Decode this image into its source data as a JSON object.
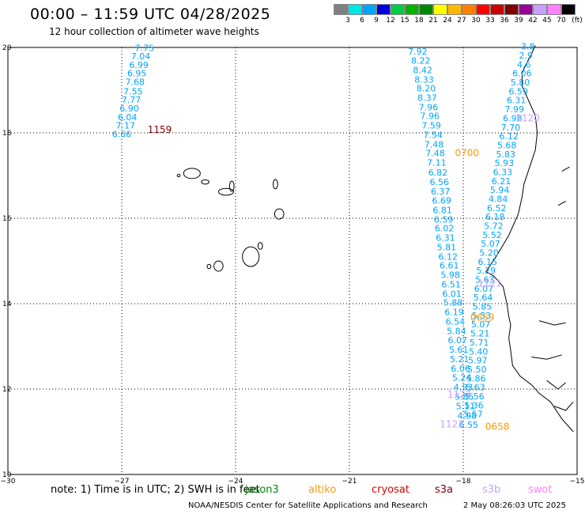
{
  "title": "00:00 – 11:59 UTC 04/28/2025",
  "subtitle": "12 hour collection of altimeter wave heights",
  "scale": {
    "unit": "(ft)",
    "colors": [
      "#808080",
      "#00e5e5",
      "#00a5ff",
      "#0000dd",
      "#00cc44",
      "#00b200",
      "#008800",
      "#ffff00",
      "#ffb800",
      "#ff8000",
      "#ff0000",
      "#cc0000",
      "#800000",
      "#990099",
      "#c8a0ff",
      "#ff80ff",
      "#000000"
    ],
    "labels": [
      "3",
      "6",
      "9",
      "12",
      "15",
      "18",
      "21",
      "24",
      "27",
      "30",
      "33",
      "36",
      "39",
      "42",
      "45",
      "70"
    ]
  },
  "axes": {
    "x_ticks": [
      {
        "lon": -30,
        "label": "−30"
      },
      {
        "lon": -27,
        "label": "−27"
      },
      {
        "lon": -24,
        "label": "−24"
      },
      {
        "lon": -21,
        "label": "−21"
      },
      {
        "lon": -18,
        "label": "−18"
      },
      {
        "lon": -15,
        "label": "−15"
      }
    ],
    "y_ticks": [
      {
        "lat": 10,
        "label": "10"
      },
      {
        "lat": 12,
        "label": "12"
      },
      {
        "lat": 14,
        "label": "14"
      },
      {
        "lat": 16,
        "label": "16"
      },
      {
        "lat": 18,
        "label": "18"
      },
      {
        "lat": 20,
        "label": "20"
      }
    ],
    "lon_range": [
      -30,
      -15
    ],
    "lat_range": [
      10,
      20
    ]
  },
  "tracks": [
    {
      "color": "#00a5ff",
      "points": [
        {
          "lon": -26.4,
          "lat": 19.92,
          "v": "7.75"
        },
        {
          "lon": -26.5,
          "lat": 19.72,
          "v": "7.04"
        },
        {
          "lon": -26.55,
          "lat": 19.52,
          "v": "6.99"
        },
        {
          "lon": -26.6,
          "lat": 19.32,
          "v": "6.95"
        },
        {
          "lon": -26.65,
          "lat": 19.12,
          "v": "7.68"
        },
        {
          "lon": -26.7,
          "lat": 18.9,
          "v": "7.55"
        },
        {
          "lon": -26.75,
          "lat": 18.7,
          "v": "7.77"
        },
        {
          "lon": -26.8,
          "lat": 18.5,
          "v": "6.90"
        },
        {
          "lon": -26.85,
          "lat": 18.3,
          "v": "6.04"
        },
        {
          "lon": -26.9,
          "lat": 18.1,
          "v": "7.17"
        },
        {
          "lon": -27.0,
          "lat": 17.9,
          "v": "6.66"
        }
      ]
    },
    {
      "color": "#00a5ff",
      "points": [
        {
          "lon": -19.2,
          "lat": 19.83,
          "v": "7.92"
        },
        {
          "lon": -19.12,
          "lat": 19.62,
          "v": "8.22"
        },
        {
          "lon": -19.07,
          "lat": 19.4,
          "v": "8.42"
        },
        {
          "lon": -19.03,
          "lat": 19.18,
          "v": "8.33"
        },
        {
          "lon": -18.98,
          "lat": 18.97,
          "v": "8.20"
        },
        {
          "lon": -18.95,
          "lat": 18.75,
          "v": "8.37"
        },
        {
          "lon": -18.92,
          "lat": 18.53,
          "v": "7.96"
        },
        {
          "lon": -18.88,
          "lat": 18.32,
          "v": "7.96"
        },
        {
          "lon": -18.84,
          "lat": 18.1,
          "v": "7.59"
        },
        {
          "lon": -18.8,
          "lat": 17.88,
          "v": "7.54"
        },
        {
          "lon": -18.77,
          "lat": 17.66,
          "v": "7.48"
        },
        {
          "lon": -18.74,
          "lat": 17.45,
          "v": "7.48"
        },
        {
          "lon": -18.7,
          "lat": 17.23,
          "v": "7.11"
        },
        {
          "lon": -18.67,
          "lat": 17.0,
          "v": "6.82"
        },
        {
          "lon": -18.63,
          "lat": 16.78,
          "v": "6.56"
        },
        {
          "lon": -18.6,
          "lat": 16.56,
          "v": "6.37"
        },
        {
          "lon": -18.57,
          "lat": 16.34,
          "v": "6.69"
        },
        {
          "lon": -18.55,
          "lat": 16.12,
          "v": "6.81"
        },
        {
          "lon": -18.52,
          "lat": 15.9,
          "v": "6.59"
        },
        {
          "lon": -18.5,
          "lat": 15.69,
          "v": "6.02"
        },
        {
          "lon": -18.47,
          "lat": 15.47,
          "v": "6.31"
        },
        {
          "lon": -18.44,
          "lat": 15.25,
          "v": "5.81"
        },
        {
          "lon": -18.4,
          "lat": 15.03,
          "v": "6.12"
        },
        {
          "lon": -18.37,
          "lat": 14.82,
          "v": "6.61"
        },
        {
          "lon": -18.34,
          "lat": 14.6,
          "v": "5.98"
        },
        {
          "lon": -18.32,
          "lat": 14.38,
          "v": "6.51"
        },
        {
          "lon": -18.3,
          "lat": 14.16,
          "v": "6.01"
        },
        {
          "lon": -18.27,
          "lat": 13.95,
          "v": "5.88"
        },
        {
          "lon": -18.24,
          "lat": 13.73,
          "v": "6.19"
        },
        {
          "lon": -18.21,
          "lat": 13.51,
          "v": "6.54"
        },
        {
          "lon": -18.18,
          "lat": 13.29,
          "v": "5.84"
        },
        {
          "lon": -18.15,
          "lat": 13.07,
          "v": "6.07"
        },
        {
          "lon": -18.12,
          "lat": 12.85,
          "v": "5.61"
        },
        {
          "lon": -18.1,
          "lat": 12.63,
          "v": "5.21"
        },
        {
          "lon": -18.07,
          "lat": 12.41,
          "v": "6.06"
        },
        {
          "lon": -18.04,
          "lat": 12.19,
          "v": "5.24"
        },
        {
          "lon": -18.0,
          "lat": 11.97,
          "v": "4.93"
        },
        {
          "lon": -17.97,
          "lat": 11.75,
          "v": "5.85"
        },
        {
          "lon": -17.94,
          "lat": 11.53,
          "v": "5.11"
        },
        {
          "lon": -17.9,
          "lat": 11.31,
          "v": "4.98"
        },
        {
          "lon": -17.86,
          "lat": 11.09,
          "v": "6.55"
        }
      ]
    },
    {
      "color": "#00a5ff",
      "points": [
        {
          "lon": -16.3,
          "lat": 19.95,
          "v": "3.8"
        },
        {
          "lon": -16.35,
          "lat": 19.74,
          "v": "2.9"
        },
        {
          "lon": -16.4,
          "lat": 19.53,
          "v": "4.6"
        },
        {
          "lon": -16.45,
          "lat": 19.32,
          "v": "6.06"
        },
        {
          "lon": -16.5,
          "lat": 19.11,
          "v": "5.80"
        },
        {
          "lon": -16.55,
          "lat": 18.9,
          "v": "6.59"
        },
        {
          "lon": -16.6,
          "lat": 18.69,
          "v": "6.31"
        },
        {
          "lon": -16.65,
          "lat": 18.48,
          "v": "7.99"
        },
        {
          "lon": -16.7,
          "lat": 18.27,
          "v": "6.98"
        },
        {
          "lon": -16.75,
          "lat": 18.06,
          "v": "7.70"
        },
        {
          "lon": -16.8,
          "lat": 17.85,
          "v": "6.12"
        },
        {
          "lon": -16.85,
          "lat": 17.64,
          "v": "5.68"
        },
        {
          "lon": -16.88,
          "lat": 17.43,
          "v": "5.83"
        },
        {
          "lon": -16.92,
          "lat": 17.22,
          "v": "5.93"
        },
        {
          "lon": -16.96,
          "lat": 17.01,
          "v": "6.33"
        },
        {
          "lon": -17.0,
          "lat": 16.8,
          "v": "6.21"
        },
        {
          "lon": -17.04,
          "lat": 16.59,
          "v": "5.94"
        },
        {
          "lon": -17.08,
          "lat": 16.38,
          "v": "4.84"
        },
        {
          "lon": -17.12,
          "lat": 16.17,
          "v": "6.52"
        },
        {
          "lon": -17.16,
          "lat": 15.96,
          "v": "6.18"
        },
        {
          "lon": -17.2,
          "lat": 15.75,
          "v": "5.72"
        },
        {
          "lon": -17.24,
          "lat": 15.54,
          "v": "5.52"
        },
        {
          "lon": -17.28,
          "lat": 15.33,
          "v": "5.07"
        },
        {
          "lon": -17.32,
          "lat": 15.12,
          "v": "5.20"
        },
        {
          "lon": -17.36,
          "lat": 14.91,
          "v": "6.15"
        },
        {
          "lon": -17.4,
          "lat": 14.7,
          "v": "5.29"
        },
        {
          "lon": -17.43,
          "lat": 14.49,
          "v": "5.63"
        },
        {
          "lon": -17.46,
          "lat": 14.28,
          "v": "6.07"
        },
        {
          "lon": -17.48,
          "lat": 14.07,
          "v": "5.64"
        },
        {
          "lon": -17.5,
          "lat": 13.86,
          "v": "5.85"
        },
        {
          "lon": -17.52,
          "lat": 13.65,
          "v": "5.53"
        },
        {
          "lon": -17.54,
          "lat": 13.44,
          "v": "5.07"
        },
        {
          "lon": -17.56,
          "lat": 13.23,
          "v": "5.21"
        },
        {
          "lon": -17.58,
          "lat": 13.02,
          "v": "5.71"
        },
        {
          "lon": -17.6,
          "lat": 12.81,
          "v": "5.40"
        },
        {
          "lon": -17.62,
          "lat": 12.6,
          "v": "5.97"
        },
        {
          "lon": -17.64,
          "lat": 12.39,
          "v": "5.50"
        },
        {
          "lon": -17.66,
          "lat": 12.18,
          "v": "5.86"
        },
        {
          "lon": -17.68,
          "lat": 11.97,
          "v": "5.63"
        },
        {
          "lon": -17.7,
          "lat": 11.76,
          "v": "5.56"
        },
        {
          "lon": -17.72,
          "lat": 11.55,
          "v": "5.36"
        },
        {
          "lon": -17.74,
          "lat": 11.34,
          "v": "5.57"
        }
      ]
    }
  ],
  "time_labels": [
    {
      "lon": -26.0,
      "lat": 18.0,
      "text": "1159",
      "color": "#800000"
    },
    {
      "lon": -17.9,
      "lat": 17.45,
      "text": "0700",
      "color": "#ff9900"
    },
    {
      "lon": -16.3,
      "lat": 18.27,
      "text": "1120",
      "color": "#c8a0ff"
    },
    {
      "lon": -17.3,
      "lat": 14.4,
      "text": "1121",
      "color": "#c8a0ff"
    },
    {
      "lon": -17.5,
      "lat": 13.6,
      "text": "0659",
      "color": "#ff9900"
    },
    {
      "lon": -18.1,
      "lat": 11.8,
      "text": "1122",
      "color": "#c8a0ff"
    },
    {
      "lon": -18.3,
      "lat": 11.1,
      "text": "1123",
      "color": "#c8a0ff"
    },
    {
      "lon": -17.1,
      "lat": 11.05,
      "text": "0658",
      "color": "#ff9900"
    }
  ],
  "note": "note: 1) Time is in UTC; 2) SWH is in feet",
  "legend": [
    {
      "name": "jason3",
      "color": "#008800"
    },
    {
      "name": "altiko",
      "color": "#ff9900"
    },
    {
      "name": "cryosat",
      "color": "#dd0000"
    },
    {
      "name": "s3a",
      "color": "#800000"
    },
    {
      "name": "s3b",
      "color": "#c8a0ff"
    },
    {
      "name": "swot",
      "color": "#ff80ff"
    }
  ],
  "credit": "NOAA/NESDIS Center for Satellite Applications and Research",
  "generated": "2 May 08:26:03 UTC 2025"
}
